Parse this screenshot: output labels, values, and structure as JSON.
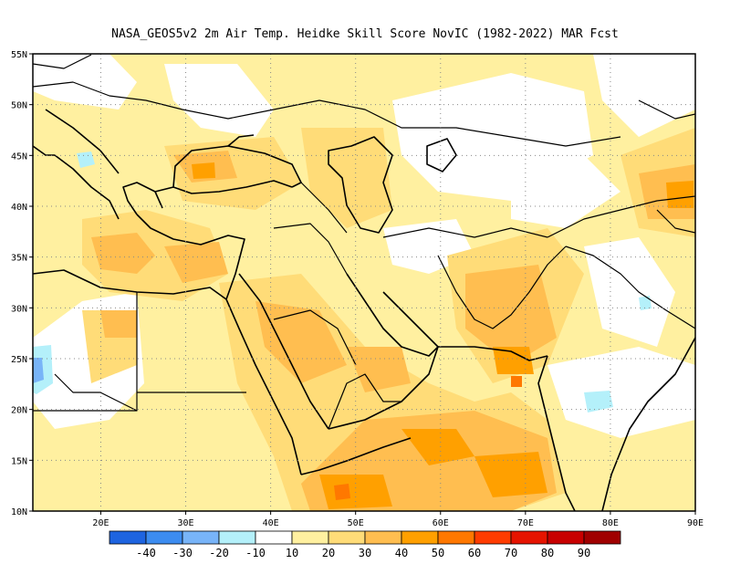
{
  "title": "NASA_GEOS5v2  2m Air Temp. Heidke Skill Score NovIC (1982-2022) MAR Fcst",
  "map": {
    "lon_range": [
      12,
      90
    ],
    "lat_range": [
      10,
      55
    ],
    "lon_ticks": [
      "20E",
      "30E",
      "40E",
      "50E",
      "60E",
      "70E",
      "80E",
      "90E"
    ],
    "lat_ticks": [
      "10N",
      "15N",
      "20N",
      "25N",
      "30N",
      "35N",
      "40N",
      "45N",
      "50N",
      "55N"
    ],
    "grid": "dotted"
  },
  "colorbar": {
    "colors": [
      "#1e64e0",
      "#3c8cf0",
      "#78b4f8",
      "#b4f0fa",
      "#ffffff",
      "#fff0a0",
      "#ffdc78",
      "#ffbe50",
      "#ffa000",
      "#ff7800",
      "#ff3c00",
      "#e61400",
      "#c80000",
      "#a00000"
    ],
    "labels": [
      "-40",
      "-30",
      "-20",
      "-10",
      "10",
      "20",
      "30",
      "40",
      "50",
      "60",
      "70",
      "80",
      "90"
    ]
  }
}
